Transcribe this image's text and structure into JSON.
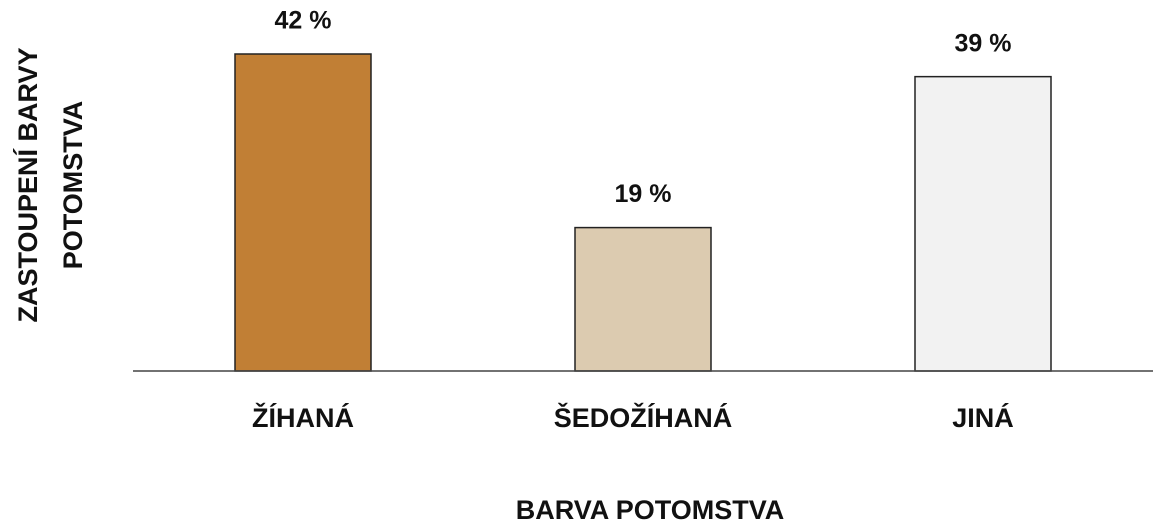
{
  "chart_data": {
    "type": "bar",
    "y_label": [
      "ZASTOUPENÍ BARVY",
      "POTOMSTVA"
    ],
    "x_label": "BARVA POTOMSTVA",
    "categories": [
      "ŽÍHANÁ",
      "ŠEDOŽÍHANÁ",
      "JINÁ"
    ],
    "values": [
      42,
      19,
      39
    ],
    "value_labels": [
      "42 %",
      "19 %",
      "39 %"
    ],
    "colors": [
      "#c17f35",
      "#dccbb0",
      "#f2f2f2"
    ]
  }
}
